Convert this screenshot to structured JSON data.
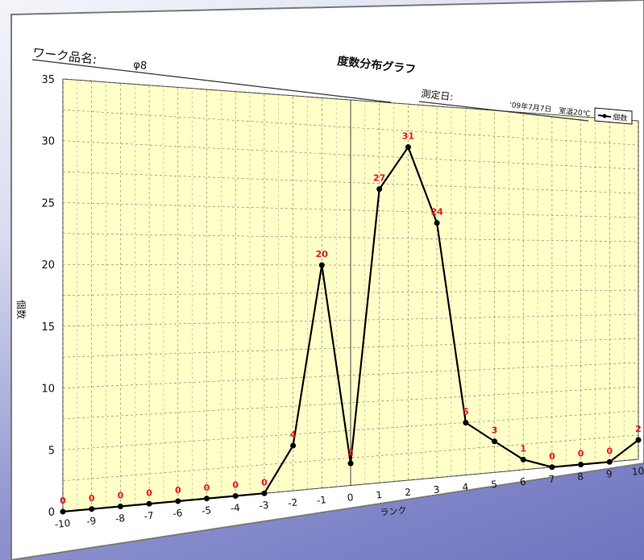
{
  "header": {
    "work_label": "ワーク品名:",
    "work_value": "φ8",
    "measure_label": "測定日:",
    "measure_value": "'09年7月7日　室温20℃"
  },
  "chart_data": {
    "type": "line",
    "title": "度数分布グラフ",
    "xlabel": "ランク",
    "ylabel": "個数",
    "x": [
      -10,
      -9,
      -8,
      -7,
      -6,
      -5,
      -4,
      -3,
      -2,
      -1,
      0,
      1,
      2,
      3,
      4,
      5,
      6,
      7,
      8,
      9,
      10
    ],
    "x_tick_labels": [
      "-10",
      "-9",
      "-8",
      "-7",
      "-6",
      "-5",
      "-4",
      "-3",
      "-2",
      "-1",
      "0",
      "1",
      "2",
      "3",
      "4",
      "5",
      "6",
      "7",
      "8",
      "9",
      "10"
    ],
    "series": [
      {
        "name": "個数",
        "values": [
          0,
          0,
          0,
          0,
          0,
          0,
          0,
          0,
          4,
          20,
          2,
          27,
          31,
          24,
          5,
          3,
          1,
          0,
          0,
          0,
          2
        ],
        "labels": [
          "0",
          "0",
          "0",
          "0",
          "0",
          "0",
          "0",
          "0",
          "4",
          "20",
          "2",
          "27",
          "31",
          "24",
          "5",
          "3",
          "1",
          "0",
          "0",
          "0",
          "2"
        ],
        "color": "#000000",
        "label_color": "#e8141e"
      }
    ],
    "ylim": [
      0,
      35
    ],
    "y_ticks": [
      0,
      5,
      10,
      15,
      20,
      25,
      30,
      35
    ],
    "y_tick_labels": [
      "0",
      "5",
      "10",
      "15",
      "20",
      "25",
      "30",
      "35"
    ],
    "grid": true,
    "legend": "top-right",
    "plot_background": "#ffffc8"
  }
}
